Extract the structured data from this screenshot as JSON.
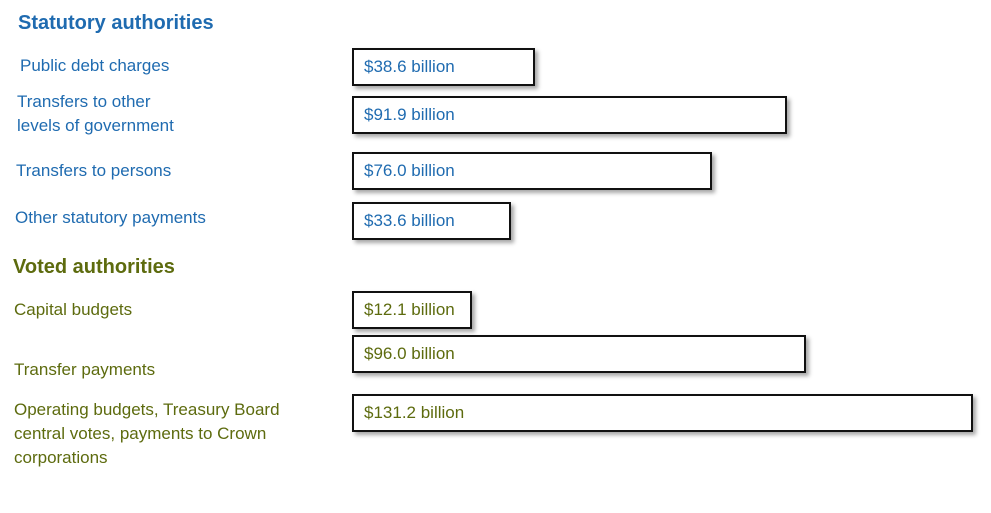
{
  "colors": {
    "statutory": "#1f6bb0",
    "voted": "#5d6b0e",
    "bar_border": "#111111"
  },
  "chart_data": {
    "type": "bar",
    "orientation": "horizontal",
    "unit": "billion",
    "xlim": [
      0,
      131.2
    ],
    "groups": [
      {
        "title": "Statutory authorities",
        "color_key": "statutory",
        "items": [
          {
            "label": "Public debt charges",
            "value": 38.6,
            "value_label": "$38.6 billion"
          },
          {
            "label": "Transfers to other\nlevels of government",
            "value": 91.9,
            "value_label": "$91.9 billion"
          },
          {
            "label": "Transfers to persons",
            "value": 76.0,
            "value_label": "$76.0 billion"
          },
          {
            "label": "Other statutory payments",
            "value": 33.6,
            "value_label": "$33.6 billion"
          }
        ]
      },
      {
        "title": "Voted authorities",
        "color_key": "voted",
        "items": [
          {
            "label": "Capital budgets",
            "value": 12.1,
            "value_label": "$12.1 billion"
          },
          {
            "label": "Transfer payments",
            "value": 96.0,
            "value_label": "$96.0 billion"
          },
          {
            "label": "Operating budgets, Treasury Board\ncentral votes, payments to Crown\ncorporations",
            "value": 131.2,
            "value_label": "$131.2 billion"
          }
        ]
      }
    ]
  }
}
